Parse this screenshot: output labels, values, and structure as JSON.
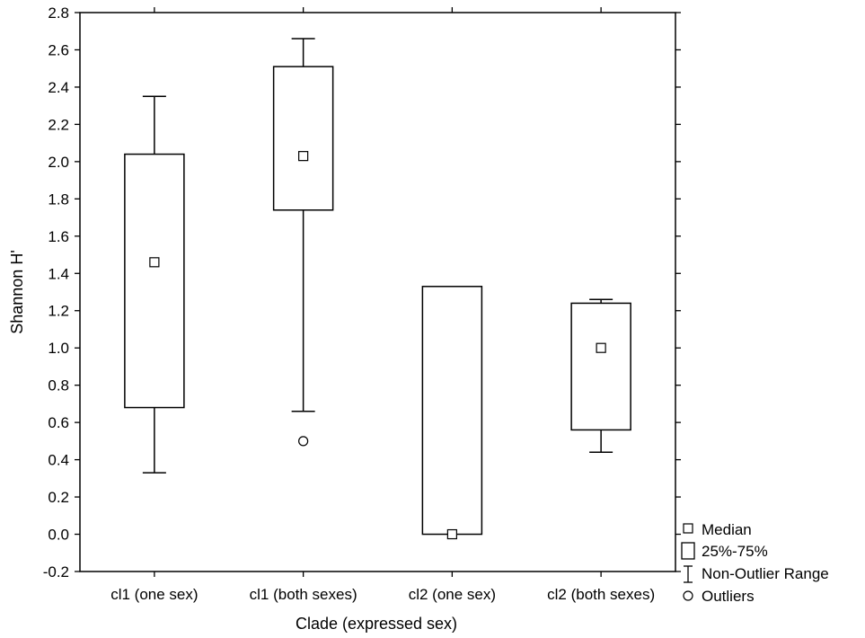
{
  "chart_data": {
    "type": "boxplot",
    "xlabel": "Clade (expressed sex)",
    "ylabel": "Shannon H'",
    "ylim": [
      -0.2,
      2.8
    ],
    "yticks": [
      -0.2,
      0.0,
      0.2,
      0.4,
      0.6,
      0.8,
      1.0,
      1.2,
      1.4,
      1.6,
      1.8,
      2.0,
      2.2,
      2.4,
      2.6,
      2.8
    ],
    "ytick_labels": [
      "-0.2",
      "0.0",
      "0.2",
      "0.4",
      "0.6",
      "0.8",
      "1.0",
      "1.2",
      "1.4",
      "1.6",
      "1.8",
      "2.0",
      "2.2",
      "2.4",
      "2.6",
      "2.8"
    ],
    "categories": [
      "cl1 (one sex)",
      "cl1 (both sexes)",
      "cl2 (one sex)",
      "cl2 (both sexes)"
    ],
    "boxes": [
      {
        "whisker_low": 0.33,
        "q1": 0.68,
        "median": 1.46,
        "q3": 2.04,
        "whisker_high": 2.35,
        "outliers": []
      },
      {
        "whisker_low": 0.66,
        "q1": 1.74,
        "median": 2.03,
        "q3": 2.51,
        "whisker_high": 2.66,
        "outliers": [
          0.5
        ]
      },
      {
        "whisker_low": 0.0,
        "q1": 0.0,
        "median": 0.0,
        "q3": 1.33,
        "whisker_high": 1.33,
        "outliers": []
      },
      {
        "whisker_low": 0.44,
        "q1": 0.56,
        "median": 1.0,
        "q3": 1.24,
        "whisker_high": 1.26,
        "outliers": []
      }
    ],
    "legend": {
      "position": "bottom-right",
      "items": [
        {
          "symbol": "square-small",
          "label": "Median"
        },
        {
          "symbol": "box",
          "label": "25%-75%"
        },
        {
          "symbol": "whisker",
          "label": "Non-Outlier Range"
        },
        {
          "symbol": "circle",
          "label": "Outliers"
        }
      ]
    },
    "grid": false
  }
}
